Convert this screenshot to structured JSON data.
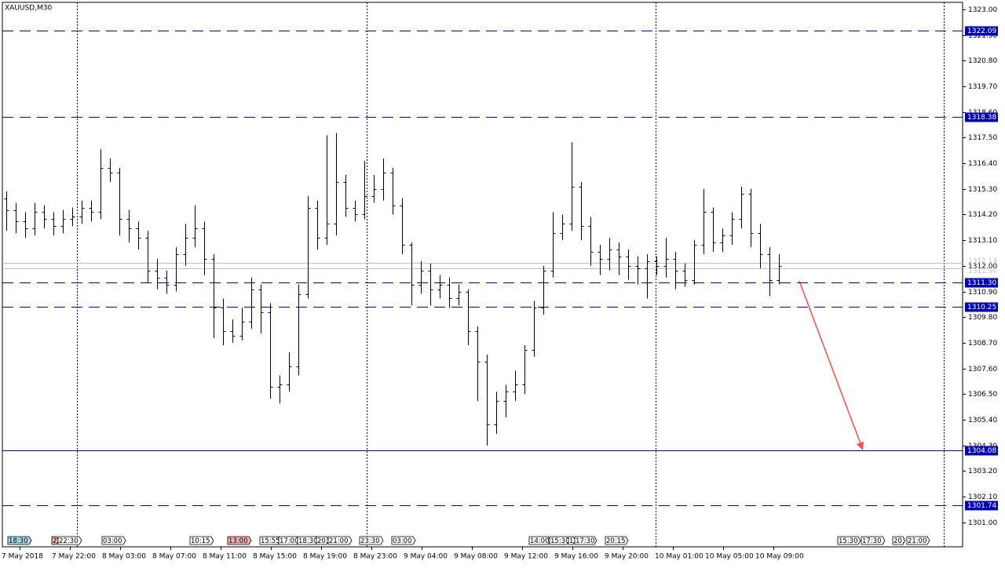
{
  "chart_data": {
    "type": "ohlc",
    "title": "XAUUSD,M30",
    "color": "#000000",
    "ylim": [
      1299.95,
      1323.3
    ],
    "yticks": [
      {
        "value": 1323.0,
        "label": "1323.00"
      },
      {
        "value": 1321.9,
        "label": "1321.90"
      },
      {
        "value": 1320.8,
        "label": "1320.80"
      },
      {
        "value": 1319.7,
        "label": "1319.70"
      },
      {
        "value": 1318.6,
        "label": "1318.60"
      },
      {
        "value": 1317.5,
        "label": "1317.50"
      },
      {
        "value": 1316.4,
        "label": "1316.40"
      },
      {
        "value": 1315.3,
        "label": "1315.30"
      },
      {
        "value": 1314.2,
        "label": "1314.20"
      },
      {
        "value": 1313.1,
        "label": "1313.10"
      },
      {
        "value": 1312.0,
        "label": "1312.00"
      },
      {
        "value": 1310.9,
        "label": "1310.90"
      },
      {
        "value": 1309.8,
        "label": "1309.80"
      },
      {
        "value": 1308.7,
        "label": "1308.70"
      },
      {
        "value": 1307.6,
        "label": "1307.60"
      },
      {
        "value": 1306.5,
        "label": "1306.50"
      },
      {
        "value": 1305.4,
        "label": "1305.40"
      },
      {
        "value": 1304.3,
        "label": "1304.30"
      },
      {
        "value": 1303.2,
        "label": "1303.20"
      },
      {
        "value": 1302.1,
        "label": "1302.10"
      },
      {
        "value": 1301.0,
        "label": "1301.00"
      }
    ],
    "time_labels": [
      "7 May 2018",
      "7 May 22:00",
      "8 May 03:00",
      "8 May 07:00",
      "8 May 11:00",
      "8 May 15:00",
      "8 May 19:00",
      "8 May 23:00",
      "9 May 04:00",
      "9 May 08:00",
      "9 May 12:00",
      "9 May 16:00",
      "9 May 20:00",
      "10 May 01:00",
      "10 May 05:00",
      "10 May 09:00"
    ],
    "event_labels": [
      "18:30",
      "2",
      "22:30",
      "03:00",
      "10:15",
      "13:00",
      "15:55",
      "17:00",
      "18:30",
      "20:",
      "21:00",
      "23:30",
      "03:00",
      "14:00",
      "15:30",
      "1",
      "17:30",
      "20:15",
      "15:30",
      "17:30",
      "20:",
      "21:00"
    ],
    "levels": [
      {
        "value": 1322.09,
        "label": "1322.09",
        "style": "dashed",
        "color": "#0000b0"
      },
      {
        "value": 1318.38,
        "label": "1318.38",
        "style": "dashed",
        "color": "#0000b0"
      },
      {
        "value": 1311.3,
        "label": "1311.30",
        "style": "dashed",
        "color": "#0000b0"
      },
      {
        "value": 1310.25,
        "label": "1310.25",
        "style": "dashed",
        "color": "#0000b0"
      },
      {
        "value": 1304.08,
        "label": "1304.08",
        "style": "solid",
        "color": "#0000b0"
      },
      {
        "value": 1301.74,
        "label": "1301.74",
        "style": "dashed",
        "color": "#0000b0"
      }
    ],
    "quote_lines": [
      {
        "value": 1312.14,
        "label": "1312.14",
        "color": "#c0c0c0"
      },
      {
        "value": 1311.9,
        "label": "1311.90",
        "color": "#c0c0c0"
      }
    ],
    "open": [
      1314.9,
      1314.4,
      1313.9,
      1313.6,
      1314.3,
      1314.0,
      1313.7,
      1314.0,
      1314.1,
      1314.5,
      1314.3,
      1316.2,
      1316.0,
      1314.0,
      1313.6,
      1313.2,
      1311.8,
      1311.5,
      1311.2,
      1312.5,
      1313.2,
      1313.6,
      1312.3,
      1310.2,
      1309.2,
      1309.0,
      1309.6,
      1311.0,
      1310.0,
      1306.8,
      1306.9,
      1307.7,
      1310.8,
      1314.5,
      1313.2,
      1313.8,
      1315.6,
      1314.5,
      1314.2,
      1315.0,
      1315.3,
      1316.0,
      1314.6,
      1312.9,
      1311.2,
      1311.8,
      1311.0,
      1311.2,
      1310.6,
      1310.9,
      1309.2,
      1307.9,
      1305.2,
      1306.2,
      1306.6,
      1306.9,
      1308.4,
      1310.2,
      1311.8,
      1313.4,
      1313.8,
      1315.4,
      1313.7,
      1312.6,
      1312.3,
      1312.7,
      1312.4,
      1312.0,
      1311.9,
      1312.2,
      1312.0,
      1312.3,
      1311.8,
      1311.4,
      1312.9,
      1314.3,
      1313.0,
      1313.3,
      1314.0,
      1315.1,
      1313.4,
      1312.5,
      1311.4
    ],
    "high": [
      1315.2,
      1314.7,
      1314.3,
      1314.7,
      1314.6,
      1314.3,
      1314.4,
      1314.5,
      1314.8,
      1314.8,
      1317.0,
      1316.6,
      1316.2,
      1314.4,
      1313.9,
      1313.5,
      1312.3,
      1311.8,
      1312.8,
      1313.8,
      1314.6,
      1313.9,
      1312.5,
      1310.6,
      1309.7,
      1310.2,
      1311.5,
      1311.2,
      1310.4,
      1307.3,
      1308.3,
      1311.2,
      1315.0,
      1314.8,
      1317.6,
      1317.7,
      1315.9,
      1314.8,
      1316.5,
      1315.9,
      1316.6,
      1316.2,
      1314.9,
      1313.0,
      1312.2,
      1312.1,
      1311.6,
      1311.5,
      1311.2,
      1311.0,
      1309.4,
      1308.2,
      1306.6,
      1306.9,
      1307.5,
      1308.6,
      1310.5,
      1312.0,
      1314.3,
      1314.2,
      1317.3,
      1315.6,
      1314.1,
      1312.9,
      1313.2,
      1313.0,
      1312.7,
      1312.4,
      1312.5,
      1312.4,
      1313.2,
      1312.6,
      1312.1,
      1313.1,
      1315.3,
      1314.5,
      1313.6,
      1314.3,
      1315.4,
      1315.3,
      1313.8,
      1312.8,
      1312.5
    ],
    "low": [
      1313.5,
      1313.4,
      1313.2,
      1313.3,
      1313.6,
      1313.3,
      1313.4,
      1313.7,
      1313.8,
      1313.9,
      1314.0,
      1315.6,
      1313.3,
      1313.0,
      1312.7,
      1311.3,
      1311.0,
      1310.8,
      1310.9,
      1312.0,
      1312.8,
      1311.6,
      1308.9,
      1308.6,
      1308.7,
      1308.8,
      1309.3,
      1309.1,
      1306.3,
      1306.1,
      1306.6,
      1307.3,
      1310.6,
      1312.7,
      1312.9,
      1313.3,
      1314.1,
      1313.9,
      1314.0,
      1314.7,
      1314.8,
      1314.2,
      1312.5,
      1310.3,
      1310.8,
      1310.3,
      1310.6,
      1310.2,
      1310.3,
      1308.6,
      1306.2,
      1304.3,
      1304.8,
      1305.5,
      1306.2,
      1306.5,
      1308.1,
      1309.9,
      1311.5,
      1313.1,
      1313.5,
      1313.1,
      1312.0,
      1311.6,
      1311.8,
      1311.6,
      1311.4,
      1311.2,
      1310.6,
      1311.6,
      1311.5,
      1311.0,
      1311.1,
      1311.2,
      1312.5,
      1312.6,
      1312.6,
      1312.9,
      1313.6,
      1312.8,
      1311.9,
      1310.7,
      1311.2
    ],
    "close": [
      1314.4,
      1313.9,
      1313.6,
      1314.3,
      1314.0,
      1313.7,
      1314.0,
      1314.1,
      1314.5,
      1314.3,
      1316.2,
      1316.0,
      1314.0,
      1313.6,
      1313.2,
      1311.8,
      1311.5,
      1311.2,
      1312.5,
      1313.2,
      1313.6,
      1312.3,
      1310.2,
      1309.2,
      1309.0,
      1309.6,
      1311.0,
      1310.0,
      1306.8,
      1306.9,
      1307.7,
      1310.8,
      1314.5,
      1313.2,
      1313.8,
      1315.6,
      1314.5,
      1314.2,
      1315.0,
      1315.3,
      1316.0,
      1314.6,
      1312.9,
      1311.2,
      1311.8,
      1311.0,
      1311.2,
      1310.6,
      1310.9,
      1309.2,
      1307.9,
      1305.2,
      1306.2,
      1306.6,
      1306.9,
      1308.4,
      1310.2,
      1311.8,
      1313.4,
      1313.8,
      1315.4,
      1313.7,
      1312.6,
      1312.3,
      1312.7,
      1312.4,
      1312.0,
      1311.9,
      1312.2,
      1312.0,
      1312.3,
      1311.8,
      1311.4,
      1312.9,
      1314.3,
      1313.0,
      1313.3,
      1314.0,
      1315.1,
      1313.4,
      1312.5,
      1311.4,
      1312.0
    ]
  }
}
